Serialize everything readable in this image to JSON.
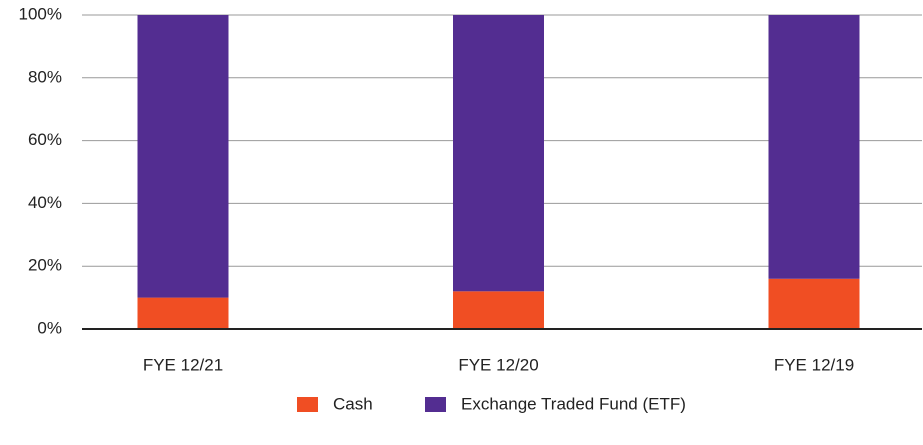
{
  "chart_data": {
    "type": "stacked_bar",
    "categories": [
      "FYE 12/21",
      "FYE 12/20",
      "FYE 12/19"
    ],
    "series": [
      {
        "name": "Cash",
        "color": "#f04e23",
        "values": [
          10,
          12,
          16
        ]
      },
      {
        "name": "Exchange Traded Fund (ETF)",
        "color": "#532d91",
        "values": [
          90,
          88,
          84
        ]
      }
    ],
    "ylim": [
      0,
      100
    ],
    "yticks": [
      {
        "value": 0,
        "label": "0%"
      },
      {
        "value": 20,
        "label": "20%"
      },
      {
        "value": 40,
        "label": "40%"
      },
      {
        "value": 60,
        "label": "60%"
      },
      {
        "value": 80,
        "label": "80%"
      },
      {
        "value": 100,
        "label": "100%"
      }
    ],
    "grid": true,
    "legend": "bottom"
  }
}
